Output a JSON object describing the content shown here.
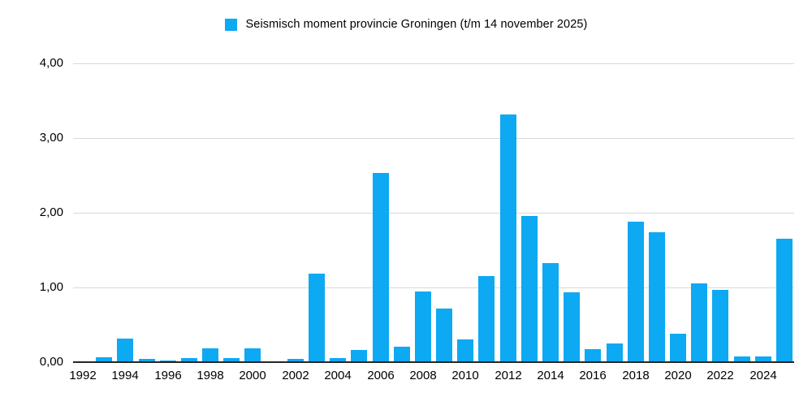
{
  "chart_data": {
    "type": "bar",
    "title": "",
    "legend": "Seismisch moment provincie Groningen (t/m 14 november 2025)",
    "xlabel": "",
    "ylabel": "",
    "x": [
      1992,
      1993,
      1994,
      1995,
      1996,
      1997,
      1998,
      1999,
      2000,
      2001,
      2002,
      2003,
      2004,
      2005,
      2006,
      2007,
      2008,
      2009,
      2010,
      2011,
      2012,
      2013,
      2014,
      2015,
      2016,
      2017,
      2018,
      2019,
      2020,
      2021,
      2022,
      2023,
      2024,
      2025
    ],
    "values": [
      0.01,
      0.06,
      0.32,
      0.04,
      0.02,
      0.05,
      0.18,
      0.05,
      0.19,
      0.01,
      0.04,
      1.19,
      0.05,
      0.16,
      2.53,
      0.21,
      0.95,
      0.72,
      0.3,
      1.15,
      3.32,
      1.96,
      1.33,
      0.94,
      0.17,
      0.25,
      1.88,
      1.74,
      0.38,
      1.05,
      0.97,
      0.08,
      0.08,
      1.65
    ],
    "xtick_labels": [
      "1992",
      "1994",
      "1996",
      "1998",
      "2000",
      "2002",
      "2004",
      "2006",
      "2008",
      "2010",
      "2012",
      "2014",
      "2016",
      "2018",
      "2020",
      "2022",
      "2024"
    ],
    "yticks": [
      {
        "label": "0,00",
        "value": 0
      },
      {
        "label": "1,00",
        "value": 1
      },
      {
        "label": "2,00",
        "value": 2
      },
      {
        "label": "3,00",
        "value": 3
      },
      {
        "label": "4,00",
        "value": 4
      }
    ],
    "ylim": [
      0,
      4
    ],
    "grid": true,
    "legend_position": "top-center",
    "bar_color": "#0DA9F2",
    "grid_color": "#D9D9D9",
    "axis_color": "#262626",
    "text_color": "#000000"
  }
}
